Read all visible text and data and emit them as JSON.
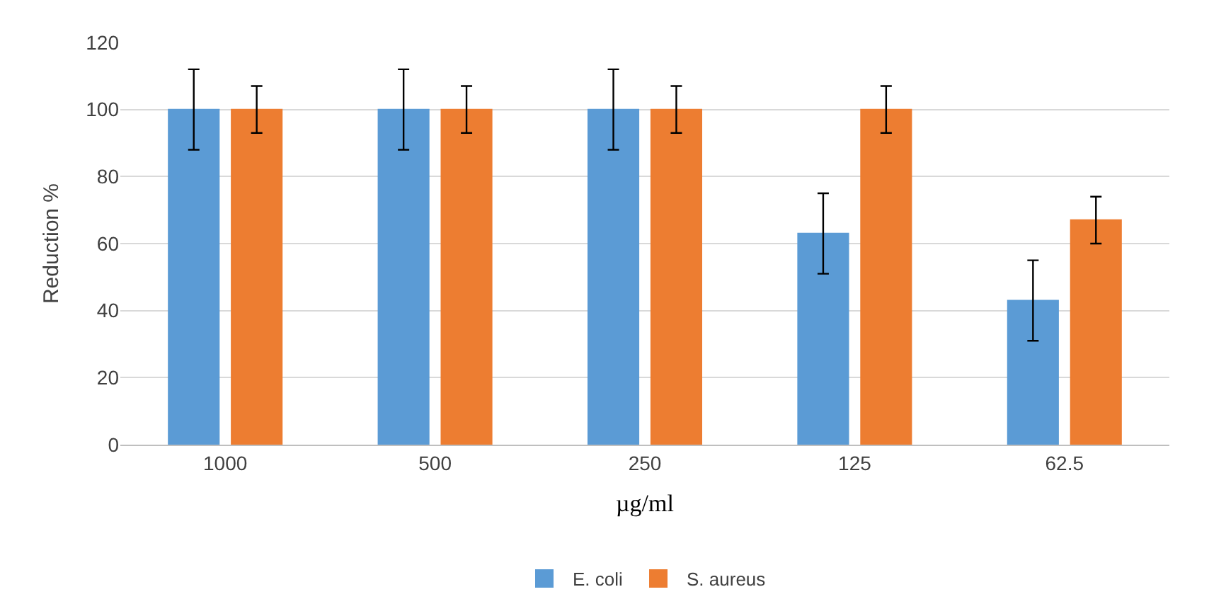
{
  "chart_data": {
    "type": "bar",
    "xlabel": "µg/ml",
    "ylabel": "Reduction %",
    "categories": [
      "1000",
      "500",
      "250",
      "125",
      "62.5"
    ],
    "series": [
      {
        "name": "E. coli",
        "color": "#5b9bd5",
        "values": [
          100,
          100,
          100,
          63,
          43
        ],
        "errors": [
          12,
          12,
          12,
          12,
          12
        ]
      },
      {
        "name": "S. aureus",
        "color": "#ed7d31",
        "values": [
          100,
          100,
          100,
          100,
          67
        ],
        "errors": [
          7,
          7,
          7,
          7,
          7
        ]
      }
    ],
    "ylim": [
      0,
      120
    ],
    "yticks": [
      0,
      20,
      40,
      60,
      80,
      100,
      120
    ],
    "grid": "y",
    "legend": "bottom"
  }
}
